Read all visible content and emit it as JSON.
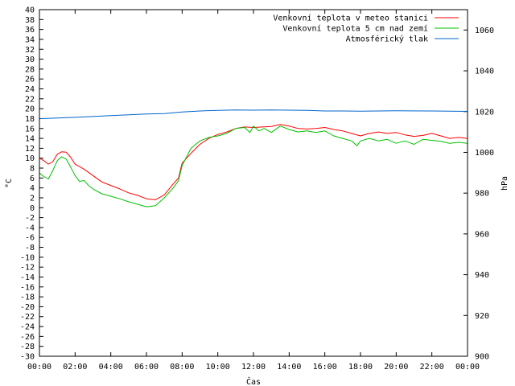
{
  "chart_data": {
    "type": "line",
    "xlabel": "Čas",
    "ylabel": "°C",
    "y2label": "hPa",
    "xlim": [
      0,
      24
    ],
    "ylim": [
      -30,
      40
    ],
    "y2lim": [
      900,
      1070
    ],
    "x_ticks": [
      {
        "v": 0,
        "label": "00:00"
      },
      {
        "v": 2,
        "label": "02:00"
      },
      {
        "v": 4,
        "label": "04:00"
      },
      {
        "v": 6,
        "label": "06:00"
      },
      {
        "v": 8,
        "label": "08:00"
      },
      {
        "v": 10,
        "label": "10:00"
      },
      {
        "v": 12,
        "label": "12:00"
      },
      {
        "v": 14,
        "label": "14:00"
      },
      {
        "v": 16,
        "label": "16:00"
      },
      {
        "v": 18,
        "label": "18:00"
      },
      {
        "v": 20,
        "label": "20:00"
      },
      {
        "v": 22,
        "label": "22:00"
      },
      {
        "v": 24,
        "label": "00:00"
      }
    ],
    "y_ticks": [
      40,
      38,
      36,
      34,
      32,
      30,
      28,
      26,
      24,
      22,
      20,
      18,
      16,
      14,
      12,
      10,
      8,
      6,
      4,
      2,
      0,
      -2,
      -4,
      -6,
      -8,
      -10,
      -12,
      -14,
      -16,
      -18,
      -20,
      -22,
      -24,
      -26,
      -28,
      -30
    ],
    "y2_ticks": [
      1060,
      1040,
      1020,
      1000,
      980,
      960,
      940,
      920,
      900
    ],
    "legend_position": "top-right",
    "grid": false,
    "series": [
      {
        "name": "Venkovní teplota v meteo stanici",
        "axis": "left",
        "color": "#ff0000",
        "points": [
          [
            0,
            10
          ],
          [
            0.25,
            9.5
          ],
          [
            0.5,
            8.8
          ],
          [
            0.75,
            9.3
          ],
          [
            1.0,
            10.8
          ],
          [
            1.25,
            11.3
          ],
          [
            1.5,
            11.2
          ],
          [
            1.75,
            10.2
          ],
          [
            2.0,
            8.8
          ],
          [
            2.5,
            7.8
          ],
          [
            3.0,
            6.5
          ],
          [
            3.5,
            5.2
          ],
          [
            4.0,
            4.5
          ],
          [
            4.5,
            3.8
          ],
          [
            5.0,
            3.0
          ],
          [
            5.5,
            2.5
          ],
          [
            6.0,
            1.8
          ],
          [
            6.5,
            1.6
          ],
          [
            7.0,
            2.6
          ],
          [
            7.5,
            4.8
          ],
          [
            7.8,
            6.0
          ],
          [
            8.0,
            9.0
          ],
          [
            8.5,
            11.0
          ],
          [
            9.0,
            12.8
          ],
          [
            9.5,
            14.0
          ],
          [
            10.0,
            14.8
          ],
          [
            10.5,
            15.3
          ],
          [
            11.0,
            16.0
          ],
          [
            11.5,
            16.3
          ],
          [
            12.0,
            16.2
          ],
          [
            12.5,
            16.3
          ],
          [
            13.0,
            16.4
          ],
          [
            13.5,
            16.8
          ],
          [
            14.0,
            16.5
          ],
          [
            14.5,
            16.0
          ],
          [
            15.0,
            15.9
          ],
          [
            15.5,
            16.0
          ],
          [
            16.0,
            16.2
          ],
          [
            16.5,
            15.8
          ],
          [
            17.0,
            15.5
          ],
          [
            17.5,
            15.0
          ],
          [
            18.0,
            14.5
          ],
          [
            18.5,
            15.0
          ],
          [
            19.0,
            15.3
          ],
          [
            19.5,
            15.0
          ],
          [
            20.0,
            15.2
          ],
          [
            20.5,
            14.7
          ],
          [
            21.0,
            14.4
          ],
          [
            21.5,
            14.6
          ],
          [
            22.0,
            15.0
          ],
          [
            22.5,
            14.5
          ],
          [
            23.0,
            14.0
          ],
          [
            23.5,
            14.2
          ],
          [
            24.0,
            14.0
          ]
        ]
      },
      {
        "name": "Venkovní teplota 5 cm nad zemí",
        "axis": "left",
        "color": "#00c000",
        "points": [
          [
            0,
            7
          ],
          [
            0.25,
            6.3
          ],
          [
            0.5,
            5.8
          ],
          [
            0.75,
            7.5
          ],
          [
            1.0,
            9.5
          ],
          [
            1.25,
            10.3
          ],
          [
            1.5,
            9.8
          ],
          [
            1.75,
            8.2
          ],
          [
            2.0,
            6.5
          ],
          [
            2.25,
            5.3
          ],
          [
            2.5,
            5.5
          ],
          [
            2.75,
            4.5
          ],
          [
            3.0,
            3.8
          ],
          [
            3.5,
            2.8
          ],
          [
            4.0,
            2.3
          ],
          [
            4.5,
            1.8
          ],
          [
            5.0,
            1.2
          ],
          [
            5.5,
            0.7
          ],
          [
            6.0,
            0.2
          ],
          [
            6.5,
            0.4
          ],
          [
            7.0,
            2.0
          ],
          [
            7.5,
            4.0
          ],
          [
            7.8,
            5.5
          ],
          [
            8.0,
            8.5
          ],
          [
            8.5,
            12.0
          ],
          [
            9.0,
            13.5
          ],
          [
            9.5,
            14.2
          ],
          [
            10.0,
            14.5
          ],
          [
            10.5,
            15.0
          ],
          [
            11.0,
            16.0
          ],
          [
            11.5,
            16.2
          ],
          [
            11.8,
            15.2
          ],
          [
            12.0,
            16.5
          ],
          [
            12.3,
            15.5
          ],
          [
            12.6,
            16.0
          ],
          [
            13.0,
            15.2
          ],
          [
            13.5,
            16.5
          ],
          [
            14.0,
            15.8
          ],
          [
            14.5,
            15.3
          ],
          [
            15.0,
            15.5
          ],
          [
            15.5,
            15.2
          ],
          [
            16.0,
            15.5
          ],
          [
            16.5,
            14.5
          ],
          [
            17.0,
            14.0
          ],
          [
            17.5,
            13.5
          ],
          [
            17.8,
            12.5
          ],
          [
            18.0,
            13.5
          ],
          [
            18.5,
            14.0
          ],
          [
            19.0,
            13.5
          ],
          [
            19.5,
            13.8
          ],
          [
            20.0,
            13.0
          ],
          [
            20.5,
            13.5
          ],
          [
            21.0,
            12.8
          ],
          [
            21.5,
            13.8
          ],
          [
            22.0,
            13.6
          ],
          [
            22.5,
            13.4
          ],
          [
            23.0,
            13.0
          ],
          [
            23.5,
            13.2
          ],
          [
            24.0,
            13.0
          ]
        ]
      },
      {
        "name": "Atmosférický tlak",
        "axis": "right",
        "color": "#0066cc",
        "points": [
          [
            0,
            1016.5
          ],
          [
            2,
            1017.2
          ],
          [
            4,
            1018.0
          ],
          [
            6,
            1018.8
          ],
          [
            7,
            1019.0
          ],
          [
            8,
            1019.8
          ],
          [
            9,
            1020.3
          ],
          [
            10,
            1020.6
          ],
          [
            11,
            1020.8
          ],
          [
            12,
            1020.7
          ],
          [
            13,
            1020.8
          ],
          [
            14,
            1020.7
          ],
          [
            15,
            1020.6
          ],
          [
            16,
            1020.3
          ],
          [
            17,
            1020.3
          ],
          [
            18,
            1020.2
          ],
          [
            20,
            1020.4
          ],
          [
            22,
            1020.3
          ],
          [
            23,
            1020.2
          ],
          [
            24,
            1020.1
          ]
        ]
      }
    ]
  }
}
